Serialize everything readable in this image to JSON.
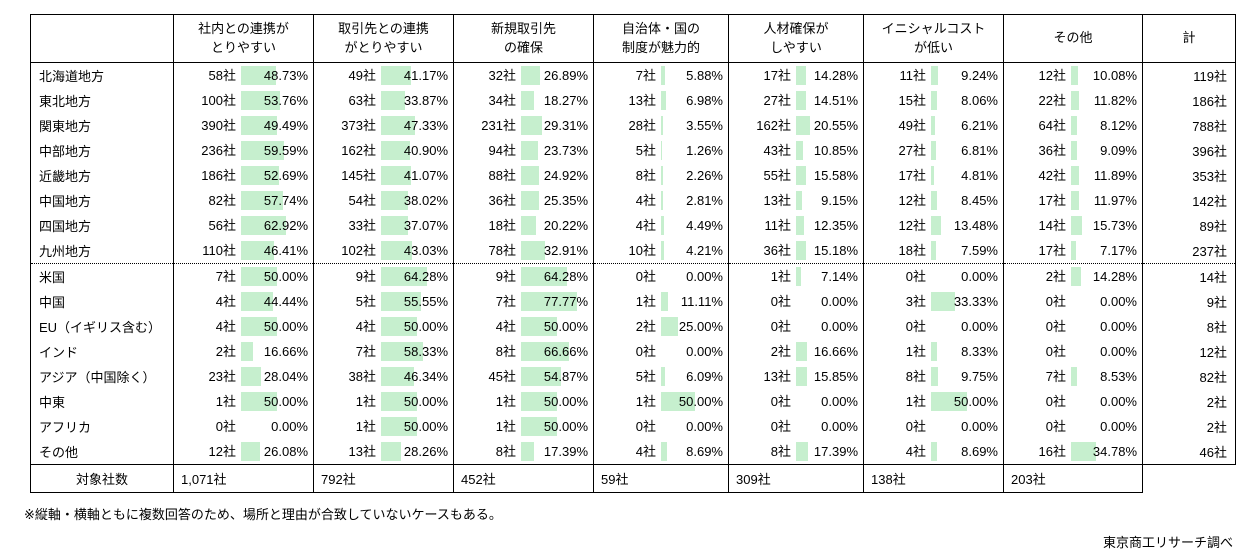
{
  "chart_data": {
    "type": "table",
    "corner_label": "",
    "unit_note": "社 = companies, percentages shown with proportional green data bars",
    "columns": [
      "社内との連携が\nとりやすい",
      "取引先との連携\nがとりやすい",
      "新規取引先\nの確保",
      "自治体・国の\n制度が魅力的",
      "人材確保が\nしやすい",
      "イニシャルコスト\nが低い",
      "その他",
      "計"
    ],
    "rows": [
      {
        "label": "北海道地方",
        "group_start": false,
        "cells": [
          [
            "58社",
            "48.73%"
          ],
          [
            "49社",
            "41.17%"
          ],
          [
            "32社",
            "26.89%"
          ],
          [
            "7社",
            "5.88%"
          ],
          [
            "17社",
            "14.28%"
          ],
          [
            "11社",
            "9.24%"
          ],
          [
            "12社",
            "10.08%"
          ]
        ],
        "total": "119社"
      },
      {
        "label": "東北地方",
        "group_start": false,
        "cells": [
          [
            "100社",
            "53.76%"
          ],
          [
            "63社",
            "33.87%"
          ],
          [
            "34社",
            "18.27%"
          ],
          [
            "13社",
            "6.98%"
          ],
          [
            "27社",
            "14.51%"
          ],
          [
            "15社",
            "8.06%"
          ],
          [
            "22社",
            "11.82%"
          ]
        ],
        "total": "186社"
      },
      {
        "label": "関東地方",
        "group_start": false,
        "cells": [
          [
            "390社",
            "49.49%"
          ],
          [
            "373社",
            "47.33%"
          ],
          [
            "231社",
            "29.31%"
          ],
          [
            "28社",
            "3.55%"
          ],
          [
            "162社",
            "20.55%"
          ],
          [
            "49社",
            "6.21%"
          ],
          [
            "64社",
            "8.12%"
          ]
        ],
        "total": "788社"
      },
      {
        "label": "中部地方",
        "group_start": false,
        "cells": [
          [
            "236社",
            "59.59%"
          ],
          [
            "162社",
            "40.90%"
          ],
          [
            "94社",
            "23.73%"
          ],
          [
            "5社",
            "1.26%"
          ],
          [
            "43社",
            "10.85%"
          ],
          [
            "27社",
            "6.81%"
          ],
          [
            "36社",
            "9.09%"
          ]
        ],
        "total": "396社"
      },
      {
        "label": "近畿地方",
        "group_start": false,
        "cells": [
          [
            "186社",
            "52.69%"
          ],
          [
            "145社",
            "41.07%"
          ],
          [
            "88社",
            "24.92%"
          ],
          [
            "8社",
            "2.26%"
          ],
          [
            "55社",
            "15.58%"
          ],
          [
            "17社",
            "4.81%"
          ],
          [
            "42社",
            "11.89%"
          ]
        ],
        "total": "353社"
      },
      {
        "label": "中国地方",
        "group_start": false,
        "cells": [
          [
            "82社",
            "57.74%"
          ],
          [
            "54社",
            "38.02%"
          ],
          [
            "36社",
            "25.35%"
          ],
          [
            "4社",
            "2.81%"
          ],
          [
            "13社",
            "9.15%"
          ],
          [
            "12社",
            "8.45%"
          ],
          [
            "17社",
            "11.97%"
          ]
        ],
        "total": "142社"
      },
      {
        "label": "四国地方",
        "group_start": false,
        "cells": [
          [
            "56社",
            "62.92%"
          ],
          [
            "33社",
            "37.07%"
          ],
          [
            "18社",
            "20.22%"
          ],
          [
            "4社",
            "4.49%"
          ],
          [
            "11社",
            "12.35%"
          ],
          [
            "12社",
            "13.48%"
          ],
          [
            "14社",
            "15.73%"
          ]
        ],
        "total": "89社"
      },
      {
        "label": "九州地方",
        "group_start": false,
        "cells": [
          [
            "110社",
            "46.41%"
          ],
          [
            "102社",
            "43.03%"
          ],
          [
            "78社",
            "32.91%"
          ],
          [
            "10社",
            "4.21%"
          ],
          [
            "36社",
            "15.18%"
          ],
          [
            "18社",
            "7.59%"
          ],
          [
            "17社",
            "7.17%"
          ]
        ],
        "total": "237社"
      },
      {
        "label": "米国",
        "group_start": true,
        "cells": [
          [
            "7社",
            "50.00%"
          ],
          [
            "9社",
            "64.28%"
          ],
          [
            "9社",
            "64.28%"
          ],
          [
            "0社",
            "0.00%"
          ],
          [
            "1社",
            "7.14%"
          ],
          [
            "0社",
            "0.00%"
          ],
          [
            "2社",
            "14.28%"
          ]
        ],
        "total": "14社"
      },
      {
        "label": "中国",
        "group_start": false,
        "cells": [
          [
            "4社",
            "44.44%"
          ],
          [
            "5社",
            "55.55%"
          ],
          [
            "7社",
            "77.77%"
          ],
          [
            "1社",
            "11.11%"
          ],
          [
            "0社",
            "0.00%"
          ],
          [
            "3社",
            "33.33%"
          ],
          [
            "0社",
            "0.00%"
          ]
        ],
        "total": "9社"
      },
      {
        "label": "EU（イギリス含む）",
        "group_start": false,
        "cells": [
          [
            "4社",
            "50.00%"
          ],
          [
            "4社",
            "50.00%"
          ],
          [
            "4社",
            "50.00%"
          ],
          [
            "2社",
            "25.00%"
          ],
          [
            "0社",
            "0.00%"
          ],
          [
            "0社",
            "0.00%"
          ],
          [
            "0社",
            "0.00%"
          ]
        ],
        "total": "8社"
      },
      {
        "label": "インド",
        "group_start": false,
        "cells": [
          [
            "2社",
            "16.66%"
          ],
          [
            "7社",
            "58.33%"
          ],
          [
            "8社",
            "66.66%"
          ],
          [
            "0社",
            "0.00%"
          ],
          [
            "2社",
            "16.66%"
          ],
          [
            "1社",
            "8.33%"
          ],
          [
            "0社",
            "0.00%"
          ]
        ],
        "total": "12社"
      },
      {
        "label": "アジア（中国除く）",
        "group_start": false,
        "cells": [
          [
            "23社",
            "28.04%"
          ],
          [
            "38社",
            "46.34%"
          ],
          [
            "45社",
            "54.87%"
          ],
          [
            "5社",
            "6.09%"
          ],
          [
            "13社",
            "15.85%"
          ],
          [
            "8社",
            "9.75%"
          ],
          [
            "7社",
            "8.53%"
          ]
        ],
        "total": "82社"
      },
      {
        "label": "中東",
        "group_start": false,
        "cells": [
          [
            "1社",
            "50.00%"
          ],
          [
            "1社",
            "50.00%"
          ],
          [
            "1社",
            "50.00%"
          ],
          [
            "1社",
            "50.00%"
          ],
          [
            "0社",
            "0.00%"
          ],
          [
            "1社",
            "50.00%"
          ],
          [
            "0社",
            "0.00%"
          ]
        ],
        "total": "2社"
      },
      {
        "label": "アフリカ",
        "group_start": false,
        "cells": [
          [
            "0社",
            "0.00%"
          ],
          [
            "1社",
            "50.00%"
          ],
          [
            "1社",
            "50.00%"
          ],
          [
            "0社",
            "0.00%"
          ],
          [
            "0社",
            "0.00%"
          ],
          [
            "0社",
            "0.00%"
          ],
          [
            "0社",
            "0.00%"
          ]
        ],
        "total": "2社"
      },
      {
        "label": "その他",
        "group_start": false,
        "cells": [
          [
            "12社",
            "26.08%"
          ],
          [
            "13社",
            "28.26%"
          ],
          [
            "8社",
            "17.39%"
          ],
          [
            "4社",
            "8.69%"
          ],
          [
            "8社",
            "17.39%"
          ],
          [
            "4社",
            "8.69%"
          ],
          [
            "16社",
            "34.78%"
          ]
        ],
        "total": "46社"
      }
    ],
    "footer": {
      "label": "対象社数",
      "values": [
        "1,071社",
        "792社",
        "452社",
        "59社",
        "309社",
        "138社",
        "203社"
      ]
    },
    "layout": {
      "bar_max_percent": 100,
      "grid": true
    }
  },
  "note": "※縦軸・横軸ともに複数回答のため、場所と理由が合致していないケースもある。",
  "credit": "東京商工リサーチ調べ",
  "colors": {
    "bar_fill": "#c6efce",
    "border": "#000000",
    "background": "#ffffff"
  }
}
